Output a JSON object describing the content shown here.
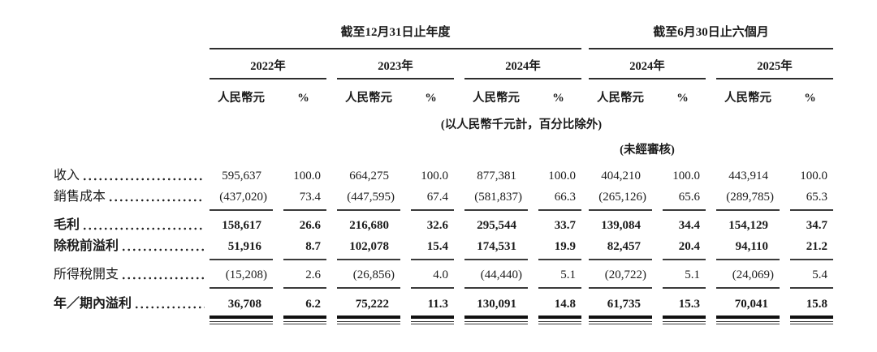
{
  "doc": {
    "table": {
      "sections": [
        {
          "title": "截至12月31日止年度"
        },
        {
          "title": "截至6月30日止六個月"
        }
      ],
      "year_headers": [
        "2022年",
        "2023年",
        "2024年",
        "2024年",
        "2025年"
      ],
      "subheaders": {
        "amount": "人民幣元",
        "pct": "%"
      },
      "unit_note": "(以人民幣千元計，百分比除外)",
      "unaudited_note": "(未經審核)",
      "rows": [
        {
          "label": "收入",
          "values": [
            "595,637",
            "100.0",
            "664,275",
            "100.0",
            "877,381",
            "100.0",
            "404,210",
            "100.0",
            "443,914",
            "100.0"
          ]
        },
        {
          "label": "銷售成本",
          "values": [
            "(437,020)",
            "73.4",
            "(447,595)",
            "67.4",
            "(581,837)",
            "66.3",
            "(265,126)",
            "65.6",
            "(289,785)",
            "65.3"
          ]
        },
        {
          "label": "毛利",
          "values": [
            "158,617",
            "26.6",
            "216,680",
            "32.6",
            "295,544",
            "33.7",
            "139,084",
            "34.4",
            "154,129",
            "34.7"
          ]
        },
        {
          "label": "除稅前溢利",
          "values": [
            "51,916",
            "8.7",
            "102,078",
            "15.4",
            "174,531",
            "19.9",
            "82,457",
            "20.4",
            "94,110",
            "21.2"
          ]
        },
        {
          "label": "所得稅開支",
          "values": [
            "(15,208)",
            "2.6",
            "(26,856)",
            "4.0",
            "(44,440)",
            "5.1",
            "(20,722)",
            "5.1",
            "(24,069)",
            "5.4"
          ]
        },
        {
          "label": "年／期內溢利",
          "values": [
            "36,708",
            "6.2",
            "75,222",
            "11.3",
            "130,091",
            "14.8",
            "61,735",
            "15.3",
            "70,041",
            "15.8"
          ]
        }
      ],
      "colors": {
        "text": "#1b1b1b",
        "rule": "#2e2e2e",
        "total_rule": "#101010"
      }
    }
  }
}
